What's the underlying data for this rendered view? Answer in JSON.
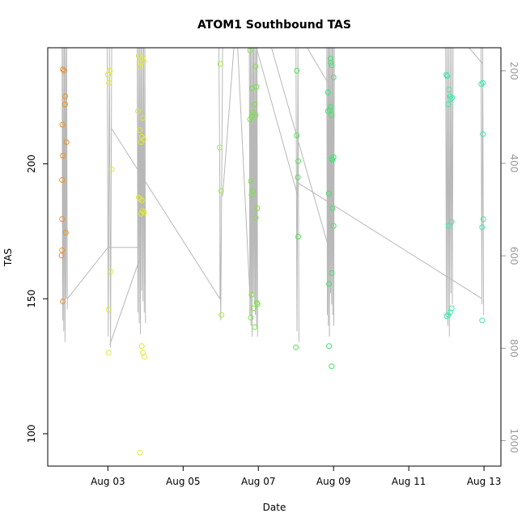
{
  "chart_data": {
    "type": "scatter",
    "title": "ATOM1 Southbound TAS",
    "xlabel": "Date",
    "ylabel": "TAS",
    "x_tick_labels": [
      "Aug 03",
      "Aug 05",
      "Aug 07",
      "Aug 09",
      "Aug 11",
      "Aug 13"
    ],
    "x_tick_values": [
      3,
      5,
      7,
      9,
      11,
      13
    ],
    "xlim": [
      1.4,
      13.45
    ],
    "ylim": [
      88,
      243
    ],
    "y_ticks": [
      100,
      150,
      200
    ],
    "secondary_axis": {
      "side": "right",
      "ticks": [
        200,
        400,
        600,
        800,
        1000
      ],
      "lim": [
        1055,
        150
      ],
      "color": "#9a9a9a"
    },
    "grid": false,
    "legend": "none",
    "points": [
      {
        "x": 1.8,
        "y": 235,
        "color": "#ee8f28"
      },
      {
        "x": 1.83,
        "y": 234.5,
        "color": "#ee8f28"
      },
      {
        "x": 1.86,
        "y": 225,
        "color": "#ee8f28"
      },
      {
        "x": 1.86,
        "y": 222,
        "color": "#ee8f28"
      },
      {
        "x": 1.79,
        "y": 214.5,
        "color": "#ee8f28"
      },
      {
        "x": 1.9,
        "y": 208,
        "color": "#ee8f28"
      },
      {
        "x": 1.8,
        "y": 203,
        "color": "#ee8f28"
      },
      {
        "x": 1.78,
        "y": 194,
        "color": "#ee8f28"
      },
      {
        "x": 1.78,
        "y": 179.5,
        "color": "#ee8f28"
      },
      {
        "x": 1.88,
        "y": 174.5,
        "color": "#ee8f28"
      },
      {
        "x": 1.78,
        "y": 168,
        "color": "#ee8f28"
      },
      {
        "x": 1.77,
        "y": 166,
        "color": "#ee8f28"
      },
      {
        "x": 1.8,
        "y": 149,
        "color": "#ee8f28"
      },
      {
        "x": 3.0,
        "y": 233,
        "color": "#e0e838"
      },
      {
        "x": 3.05,
        "y": 234.5,
        "color": "#e0e838"
      },
      {
        "x": 3.03,
        "y": 230,
        "color": "#e0e838"
      },
      {
        "x": 3.1,
        "y": 198,
        "color": "#e0e838"
      },
      {
        "x": 3.08,
        "y": 160,
        "color": "#e0e838"
      },
      {
        "x": 3.02,
        "y": 146,
        "color": "#e0e838"
      },
      {
        "x": 3.02,
        "y": 130,
        "color": "#e0e838"
      },
      {
        "x": 3.82,
        "y": 240,
        "color": "#e0e838"
      },
      {
        "x": 3.88,
        "y": 237.5,
        "color": "#e0e838"
      },
      {
        "x": 3.92,
        "y": 239,
        "color": "#e0e838"
      },
      {
        "x": 3.95,
        "y": 238,
        "color": "#e0e838"
      },
      {
        "x": 3.85,
        "y": 236,
        "color": "#e0e838"
      },
      {
        "x": 3.8,
        "y": 219.5,
        "color": "#e0e838"
      },
      {
        "x": 3.93,
        "y": 217,
        "color": "#e0e838"
      },
      {
        "x": 3.85,
        "y": 212.5,
        "color": "#e0e838"
      },
      {
        "x": 3.9,
        "y": 210,
        "color": "#e0e838"
      },
      {
        "x": 3.95,
        "y": 209,
        "color": "#e0e838"
      },
      {
        "x": 3.88,
        "y": 208,
        "color": "#e0e838"
      },
      {
        "x": 3.82,
        "y": 187.5,
        "color": "#e0e838"
      },
      {
        "x": 3.85,
        "y": 187,
        "color": "#e0e838"
      },
      {
        "x": 3.9,
        "y": 186.5,
        "color": "#e0e838"
      },
      {
        "x": 3.92,
        "y": 182.5,
        "color": "#e0e838"
      },
      {
        "x": 3.97,
        "y": 182,
        "color": "#e0e838"
      },
      {
        "x": 3.88,
        "y": 181.5,
        "color": "#e0e838"
      },
      {
        "x": 3.9,
        "y": 132.5,
        "color": "#e0e838"
      },
      {
        "x": 3.93,
        "y": 130,
        "color": "#e0e838"
      },
      {
        "x": 3.97,
        "y": 128.5,
        "color": "#e0e838"
      },
      {
        "x": 3.85,
        "y": 93,
        "color": "#e0e838"
      },
      {
        "x": 5.99,
        "y": 237,
        "color": "#a8e840"
      },
      {
        "x": 5.97,
        "y": 206,
        "color": "#a8e840"
      },
      {
        "x": 6.01,
        "y": 190,
        "color": "#a8e840"
      },
      {
        "x": 6.02,
        "y": 144,
        "color": "#a8e840"
      },
      {
        "x": 6.78,
        "y": 242,
        "color": "#7ae24a"
      },
      {
        "x": 6.93,
        "y": 236,
        "color": "#7ae24a"
      },
      {
        "x": 6.83,
        "y": 228,
        "color": "#7ae24a"
      },
      {
        "x": 6.95,
        "y": 228.5,
        "color": "#7ae24a"
      },
      {
        "x": 6.9,
        "y": 222,
        "color": "#7ae24a"
      },
      {
        "x": 6.85,
        "y": 219,
        "color": "#7ae24a"
      },
      {
        "x": 6.93,
        "y": 218,
        "color": "#7ae24a"
      },
      {
        "x": 6.78,
        "y": 216.5,
        "color": "#7ae24a"
      },
      {
        "x": 6.83,
        "y": 217.5,
        "color": "#7ae24a"
      },
      {
        "x": 6.8,
        "y": 193.5,
        "color": "#7ae24a"
      },
      {
        "x": 6.85,
        "y": 190,
        "color": "#7ae24a"
      },
      {
        "x": 6.82,
        "y": 188.5,
        "color": "#7ae24a"
      },
      {
        "x": 6.97,
        "y": 183.5,
        "color": "#7ae24a"
      },
      {
        "x": 6.93,
        "y": 180,
        "color": "#7ae24a"
      },
      {
        "x": 6.82,
        "y": 151.5,
        "color": "#7ae24a"
      },
      {
        "x": 6.96,
        "y": 148.5,
        "color": "#7ae24a"
      },
      {
        "x": 6.98,
        "y": 148,
        "color": "#7ae24a"
      },
      {
        "x": 6.87,
        "y": 146.5,
        "color": "#7ae24a"
      },
      {
        "x": 6.8,
        "y": 143,
        "color": "#7ae24a"
      },
      {
        "x": 6.9,
        "y": 139.5,
        "color": "#7ae24a"
      },
      {
        "x": 8.02,
        "y": 234.5,
        "color": "#52e452"
      },
      {
        "x": 8.02,
        "y": 210.5,
        "color": "#52e452"
      },
      {
        "x": 8.06,
        "y": 201,
        "color": "#52e452"
      },
      {
        "x": 8.05,
        "y": 195,
        "color": "#52e452"
      },
      {
        "x": 8.06,
        "y": 173,
        "color": "#52e452"
      },
      {
        "x": 8.0,
        "y": 132,
        "color": "#52e452"
      },
      {
        "x": 8.92,
        "y": 239,
        "color": "#42e46e"
      },
      {
        "x": 8.93,
        "y": 237.5,
        "color": "#42e46e"
      },
      {
        "x": 8.95,
        "y": 236.5,
        "color": "#42e46e"
      },
      {
        "x": 9.0,
        "y": 232,
        "color": "#42e46e"
      },
      {
        "x": 8.85,
        "y": 226.5,
        "color": "#42e46e"
      },
      {
        "x": 8.9,
        "y": 220,
        "color": "#42e46e"
      },
      {
        "x": 8.85,
        "y": 219.5,
        "color": "#42e46e"
      },
      {
        "x": 8.92,
        "y": 221,
        "color": "#42e46e"
      },
      {
        "x": 8.95,
        "y": 218,
        "color": "#42e46e"
      },
      {
        "x": 8.95,
        "y": 202,
        "color": "#42e46e"
      },
      {
        "x": 9.0,
        "y": 202.5,
        "color": "#42e46e"
      },
      {
        "x": 8.97,
        "y": 201.5,
        "color": "#42e46e"
      },
      {
        "x": 8.87,
        "y": 189,
        "color": "#42e46e"
      },
      {
        "x": 8.97,
        "y": 183.5,
        "color": "#42e46e"
      },
      {
        "x": 9.0,
        "y": 177,
        "color": "#42e46e"
      },
      {
        "x": 8.95,
        "y": 159.5,
        "color": "#42e46e"
      },
      {
        "x": 8.88,
        "y": 155.5,
        "color": "#42e46e"
      },
      {
        "x": 8.88,
        "y": 132.5,
        "color": "#42e46e"
      },
      {
        "x": 8.95,
        "y": 125,
        "color": "#42e46e"
      },
      {
        "x": 12.0,
        "y": 233,
        "color": "#3ee8a8"
      },
      {
        "x": 12.02,
        "y": 232.5,
        "color": "#3ee8a8"
      },
      {
        "x": 12.08,
        "y": 227.5,
        "color": "#3ee8a8"
      },
      {
        "x": 12.1,
        "y": 225,
        "color": "#3ee8a8"
      },
      {
        "x": 12.15,
        "y": 224.5,
        "color": "#3ee8a8"
      },
      {
        "x": 12.12,
        "y": 224,
        "color": "#3ee8a8"
      },
      {
        "x": 12.05,
        "y": 222,
        "color": "#3ee8a8"
      },
      {
        "x": 12.14,
        "y": 178.5,
        "color": "#3ee8a8"
      },
      {
        "x": 12.06,
        "y": 177,
        "color": "#3ee8a8"
      },
      {
        "x": 12.14,
        "y": 146.5,
        "color": "#3ee8a8"
      },
      {
        "x": 12.05,
        "y": 144,
        "color": "#3ee8a8"
      },
      {
        "x": 12.01,
        "y": 143.5,
        "color": "#3ee8a8"
      },
      {
        "x": 12.1,
        "y": 145,
        "color": "#3ee8a8"
      },
      {
        "x": 12.93,
        "y": 229.5,
        "color": "#3ee8a8"
      },
      {
        "x": 12.97,
        "y": 230,
        "color": "#3ee8a8"
      },
      {
        "x": 12.97,
        "y": 211,
        "color": "#3ee8a8"
      },
      {
        "x": 12.98,
        "y": 179.5,
        "color": "#3ee8a8"
      },
      {
        "x": 12.95,
        "y": 176.5,
        "color": "#3ee8a8"
      },
      {
        "x": 12.95,
        "y": 142,
        "color": "#3ee8a8"
      }
    ],
    "track_color": "#b8b8b8",
    "track_bursts": [
      {
        "x0": 1.78,
        "x1": 1.92,
        "ymin": 134,
        "ymax": 243,
        "n": 10
      },
      {
        "x0": 2.98,
        "x1": 3.1,
        "ymin": 128,
        "ymax": 243,
        "n": 5
      },
      {
        "x0": 3.78,
        "x1": 4.0,
        "ymin": 137,
        "ymax": 243,
        "n": 14
      },
      {
        "x0": 5.95,
        "x1": 6.05,
        "ymin": 134,
        "ymax": 243,
        "n": 3
      },
      {
        "x0": 6.76,
        "x1": 6.98,
        "ymin": 136,
        "ymax": 243,
        "n": 16
      },
      {
        "x0": 8.0,
        "x1": 8.08,
        "ymin": 130,
        "ymax": 243,
        "n": 4
      },
      {
        "x0": 8.82,
        "x1": 9.02,
        "ymin": 136,
        "ymax": 243,
        "n": 15
      },
      {
        "x0": 11.98,
        "x1": 12.18,
        "ymin": 136,
        "ymax": 243,
        "n": 11
      },
      {
        "x0": 12.92,
        "x1": 12.99,
        "ymin": 140,
        "ymax": 243,
        "n": 4
      }
    ],
    "track_links": [
      [
        [
          1.92,
          150
        ],
        [
          3.0,
          169
        ],
        [
          3.82,
          169
        ]
      ],
      [
        [
          3.05,
          133
        ],
        [
          3.85,
          165
        ]
      ],
      [
        [
          3.1,
          213
        ],
        [
          5.98,
          150
        ],
        [
          5.98,
          188
        ]
      ],
      [
        [
          6.05,
          188
        ],
        [
          6.35,
          243
        ]
      ],
      [
        [
          6.45,
          243
        ],
        [
          6.78,
          150
        ]
      ],
      [
        [
          6.95,
          243
        ],
        [
          8.05,
          188
        ]
      ],
      [
        [
          7.35,
          243
        ],
        [
          8.95,
          165
        ]
      ],
      [
        [
          8.05,
          193
        ],
        [
          12.95,
          150
        ]
      ],
      [
        [
          8.3,
          243
        ],
        [
          8.85,
          230
        ]
      ],
      [
        [
          12.6,
          243
        ],
        [
          12.97,
          237
        ]
      ]
    ]
  }
}
